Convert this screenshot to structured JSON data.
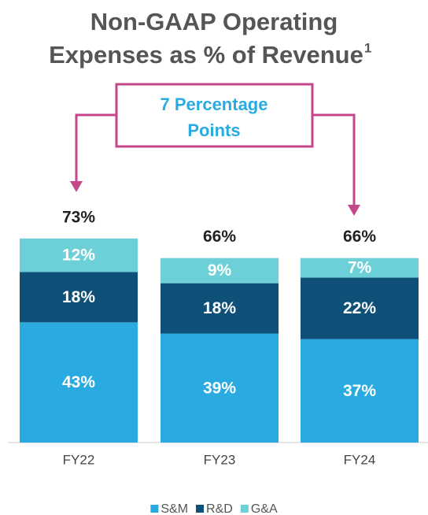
{
  "chart_data": {
    "type": "stacked_bar",
    "title": [
      "Non-GAAP Operating",
      "Expenses as % of Revenue"
    ],
    "title_footnote": "1",
    "annotation": [
      "7 Percentage",
      "Points"
    ],
    "categories": [
      "FY22",
      "FY23",
      "FY24"
    ],
    "series": [
      {
        "name": "S&M",
        "color": "#29abe2",
        "values": [
          43,
          39,
          37
        ],
        "value_labels": [
          "43%",
          "39%",
          "37%"
        ]
      },
      {
        "name": "R&D",
        "color": "#0e5078",
        "values": [
          18,
          18,
          22
        ],
        "value_labels": [
          "18%",
          "18%",
          "22%"
        ]
      },
      {
        "name": "G&A",
        "color": "#6dd0d9",
        "values": [
          12,
          9,
          7
        ],
        "value_labels": [
          "12%",
          "9%",
          "7%"
        ]
      }
    ],
    "totals": [
      73,
      66,
      66
    ],
    "total_labels": [
      "73%",
      "66%",
      "66%"
    ],
    "legend": "bottom"
  }
}
